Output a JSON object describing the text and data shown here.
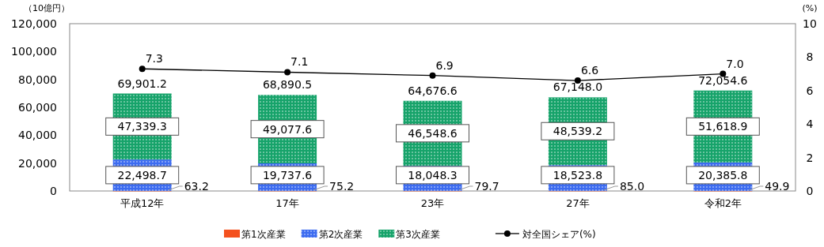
{
  "chart_data": {
    "type": "bar",
    "stacked": true,
    "ylabel": "（10億円）",
    "y2label": "(%)",
    "categories": [
      "平成12年",
      "17年",
      "23年",
      "27年",
      "令和2年"
    ],
    "ylim": [
      0,
      120000
    ],
    "yticks": [
      {
        "value": 0,
        "label": "0"
      },
      {
        "value": 20000,
        "label": "20,000"
      },
      {
        "value": 40000,
        "label": "40,000"
      },
      {
        "value": 60000,
        "label": "60,000"
      },
      {
        "value": 80000,
        "label": "80,000"
      },
      {
        "value": 100000,
        "label": "100,000"
      },
      {
        "value": 120000,
        "label": "120,000"
      }
    ],
    "y2lim": [
      0,
      10
    ],
    "y2ticks": [
      0,
      2,
      4,
      6,
      8,
      10
    ],
    "series": [
      {
        "name": "第1次産業",
        "color": "#f4511e",
        "values": [
          63.2,
          75.2,
          79.7,
          85.0,
          49.9
        ],
        "value_labels": [
          "63.2",
          "75.2",
          "79.7",
          "85.0",
          "49.9"
        ]
      },
      {
        "name": "第2次産業",
        "color": "#3d6cf0",
        "values": [
          22498.7,
          19737.6,
          18048.3,
          18523.8,
          20385.8
        ],
        "value_labels": [
          "22,498.7",
          "19,737.6",
          "18,048.3",
          "18,523.8",
          "20,385.8"
        ]
      },
      {
        "name": "第3次産業",
        "color": "#16a36a",
        "values": [
          47339.3,
          49077.6,
          46548.6,
          48539.2,
          51618.9
        ],
        "value_labels": [
          "47,339.3",
          "49,077.6",
          "46,548.6",
          "48,539.2",
          "51,618.9"
        ]
      },
      {
        "name": "対全国シェア(%)",
        "type": "line",
        "axis": "y2",
        "color": "#000000",
        "marker": "circle",
        "values": [
          7.3,
          7.1,
          6.9,
          6.6,
          7.0
        ],
        "value_labels": [
          "7.3",
          "7.1",
          "6.9",
          "6.6",
          "7.0"
        ]
      }
    ],
    "totals": [
      "69,901.2",
      "68,890.5",
      "64,676.6",
      "67,148.0",
      "72,054.6"
    ],
    "legend": "bottom"
  }
}
